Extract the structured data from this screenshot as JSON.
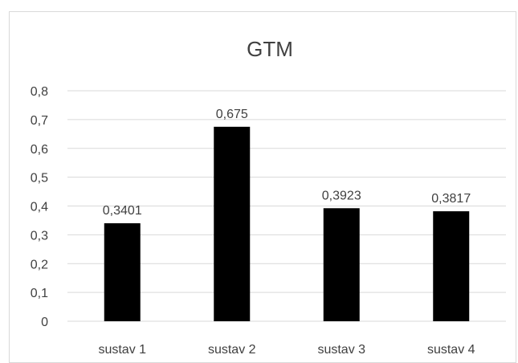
{
  "chart_data": {
    "type": "bar",
    "title": "GTM",
    "xlabel": "",
    "ylabel": "",
    "categories": [
      "sustav 1",
      "sustav 2",
      "sustav 3",
      "sustav 4"
    ],
    "values": [
      0.3401,
      0.675,
      0.3923,
      0.3817
    ],
    "data_labels": [
      "0,3401",
      "0,675",
      "0,3923",
      "0,3817"
    ],
    "ylim": [
      0,
      0.8
    ],
    "yticks": [
      0,
      0.1,
      0.2,
      0.3,
      0.4,
      0.5,
      0.6,
      0.7,
      0.8
    ],
    "ytick_labels": [
      "0",
      "0,1",
      "0,2",
      "0,3",
      "0,4",
      "0,5",
      "0,6",
      "0,7",
      "0,8"
    ],
    "grid": true,
    "legend": "none",
    "colors": {
      "bar": "#000000",
      "grid": "#d9d9d9",
      "text": "#404040"
    }
  }
}
